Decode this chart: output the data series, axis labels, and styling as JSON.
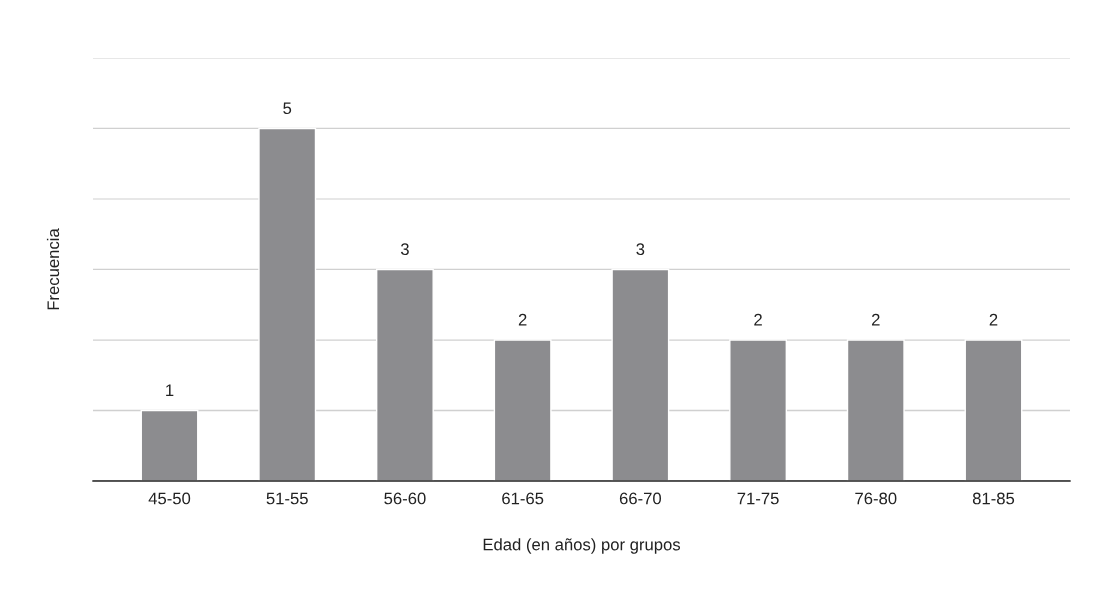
{
  "chart_data": {
    "type": "bar",
    "xlabel": "Edad (en años) por grupos",
    "ylabel": "Frecuencia",
    "categories": [
      "45-50",
      "51-55",
      "56-60",
      "61-65",
      "66-70",
      "71-75",
      "76-80",
      "81-85"
    ],
    "values": [
      1,
      5,
      3,
      2,
      3,
      2,
      2,
      2
    ],
    "color": "#8c8c8f",
    "ylim": [
      0,
      6
    ],
    "yticks": [
      {
        "value": 0,
        "label": null
      },
      {
        "value": 1,
        "label": null
      },
      {
        "value": 2,
        "label": null
      },
      {
        "value": 3,
        "label": null
      },
      {
        "value": 4,
        "label": null
      },
      {
        "value": 5,
        "label": null
      },
      {
        "value": 6,
        "label": null
      }
    ],
    "grid": "y",
    "tick_labels": "x",
    "data_labels": true
  }
}
